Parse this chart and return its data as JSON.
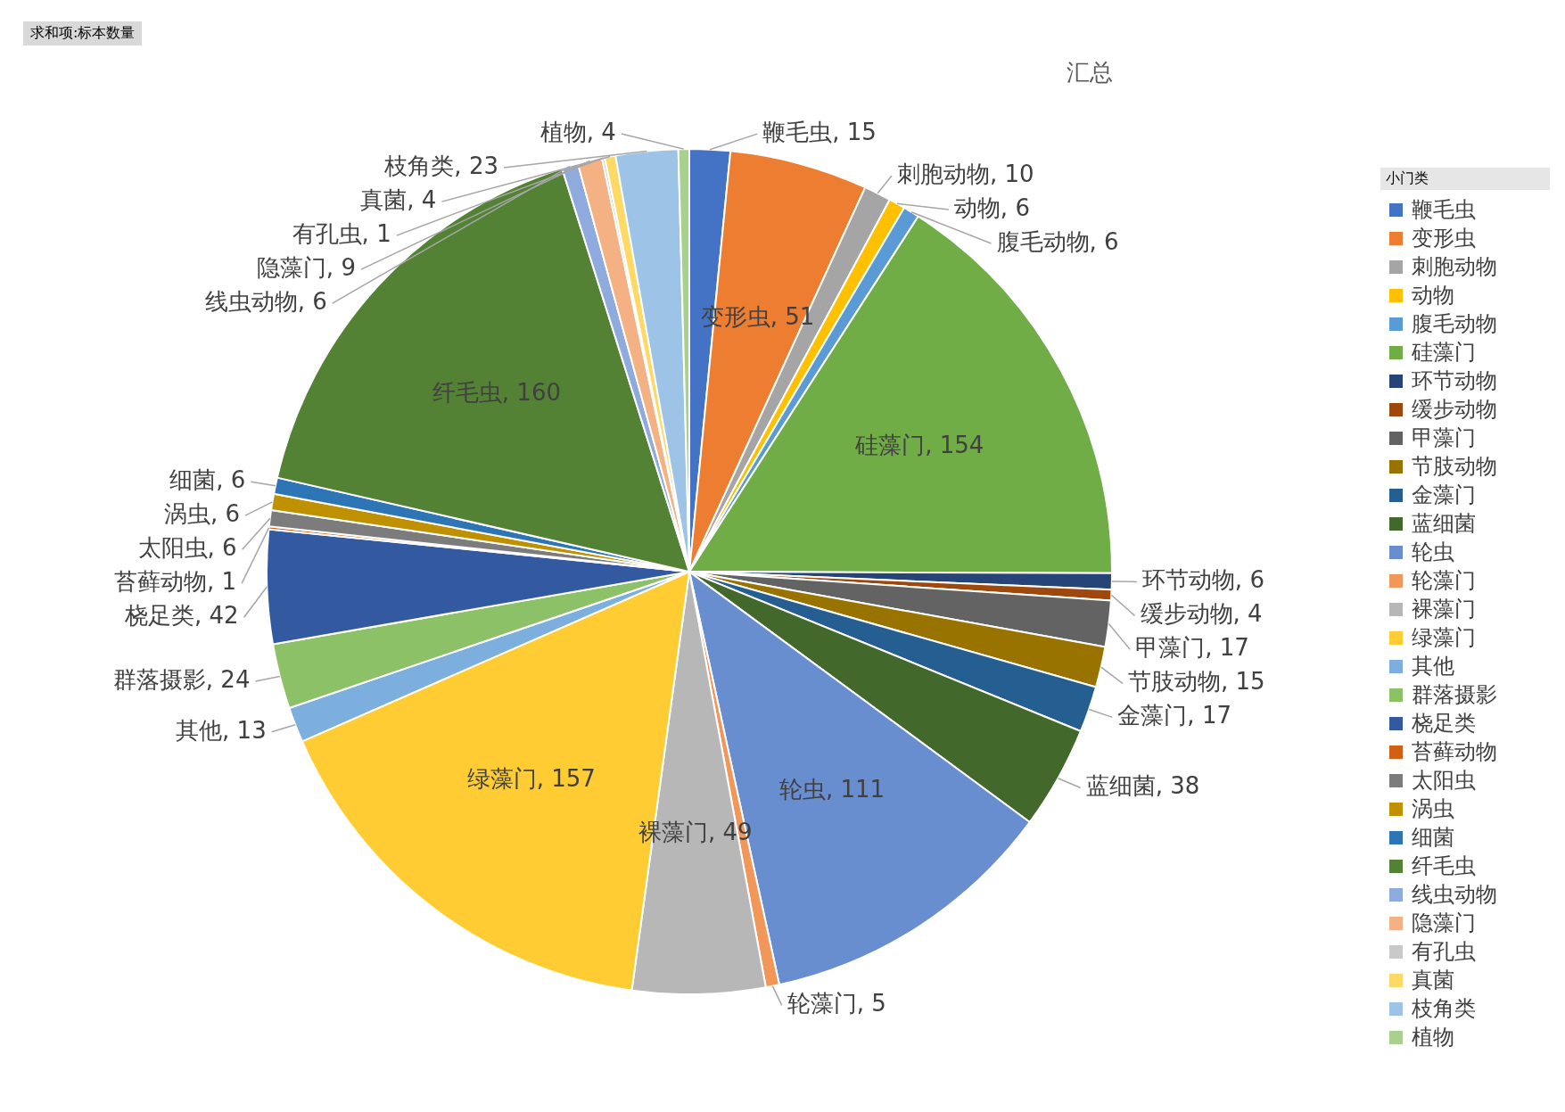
{
  "chart_data": {
    "type": "pie",
    "title": "汇总",
    "legend_title": "小门类",
    "legend": "right",
    "value_labels": [
      "鞭毛虫, 15",
      "变形虫, 51",
      "刺胞动物, 10",
      "动物, 6",
      "腹毛动物, 6",
      "硅藻门, 154",
      "环节动物, 6",
      "缓步动物, 4",
      "甲藻门, 17",
      "节肢动物, 15",
      "金藻门, 17",
      "蓝细菌, 38",
      "轮虫, 111",
      "轮藻门, 5",
      "裸藻门, 49",
      "绿藻门, 157",
      "其他, 13",
      "群落摄影, 24",
      "桡足类, 42",
      "苔藓动物, 1",
      "太阳虫, 6",
      "涡虫, 6",
      "细菌, 6",
      "纤毛虫, 160",
      "线虫动物, 6",
      "隐藻门, 9",
      "有孔虫, 1",
      "真菌, 4",
      "枝角类, 23",
      "植物, 4"
    ],
    "annotations": [
      "求和项:标本数量"
    ],
    "categories": [
      "鞭毛虫",
      "变形虫",
      "刺胞动物",
      "动物",
      "腹毛动物",
      "硅藻门",
      "环节动物",
      "缓步动物",
      "甲藻门",
      "节肢动物",
      "金藻门",
      "蓝细菌",
      "轮虫",
      "轮藻门",
      "裸藻门",
      "绿藻门",
      "其他",
      "群落摄影",
      "桡足类",
      "苔藓动物",
      "太阳虫",
      "涡虫",
      "细菌",
      "纤毛虫",
      "线虫动物",
      "隐藻门",
      "有孔虫",
      "真菌",
      "枝角类",
      "植物"
    ],
    "values": [
      15,
      51,
      10,
      6,
      6,
      154,
      6,
      4,
      17,
      15,
      17,
      38,
      111,
      5,
      49,
      157,
      13,
      24,
      42,
      1,
      6,
      6,
      6,
      160,
      6,
      9,
      1,
      4,
      23,
      4
    ],
    "colors": [
      "#4472c4",
      "#ed7d31",
      "#a5a5a5",
      "#ffc000",
      "#5b9bd5",
      "#70ad47",
      "#264478",
      "#9e480e",
      "#636363",
      "#997300",
      "#255e91",
      "#43682b",
      "#698ed0",
      "#f1975a",
      "#b7b7b7",
      "#ffcd33",
      "#7cafdd",
      "#8cc168",
      "#335aa1",
      "#d26012",
      "#7c7c7c",
      "#bf9000",
      "#2e75b6",
      "#548235",
      "#8faadc",
      "#f4b183",
      "#c9c9c9",
      "#ffd966",
      "#9dc3e6",
      "#a9d18e"
    ]
  }
}
